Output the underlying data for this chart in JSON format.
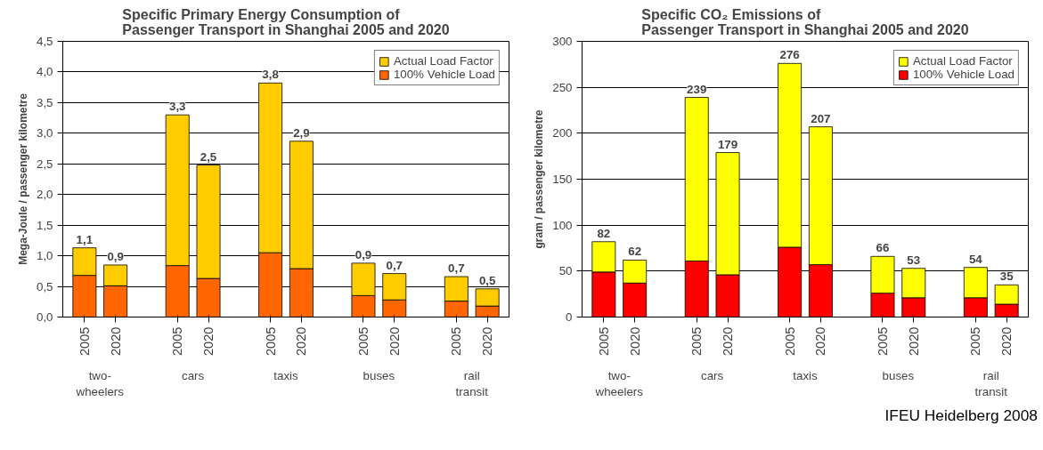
{
  "chart_data": [
    {
      "type": "bar",
      "stacked": true,
      "title": "Specific Primary Energy Consumption of\nPassenger Transport in Shanghai 2005 and 2020",
      "ylabel": "Mega-Joule / passenger kilometre",
      "categories": [
        "2005",
        "2020",
        null,
        "2005",
        "2020",
        null,
        "2005",
        "2020",
        null,
        "2005",
        "2020",
        null,
        "2005",
        "2020"
      ],
      "series": [
        {
          "name": "100% Vehicle Load",
          "color": "#ff6600",
          "values": [
            0.68,
            0.51,
            null,
            0.84,
            0.63,
            null,
            1.05,
            0.79,
            null,
            0.35,
            0.28,
            null,
            0.26,
            0.18
          ]
        },
        {
          "name": "Actual Load Factor",
          "color": "#ffcc00",
          "values": [
            0.45,
            0.34,
            null,
            2.46,
            1.85,
            null,
            2.77,
            2.08,
            null,
            0.53,
            0.43,
            null,
            0.4,
            0.28
          ]
        }
      ],
      "totals": [
        "1,1",
        "0,9",
        null,
        "3,3",
        "2,5",
        null,
        "3,8",
        "2,9",
        null,
        "0,9",
        "0,7",
        null,
        "0,7",
        "0,5"
      ],
      "ylim": [
        0,
        4.5
      ],
      "yticks": [
        {
          "value": 0,
          "label": "0,0"
        },
        {
          "value": 0.5,
          "label": "0,5"
        },
        {
          "value": 1,
          "label": "1,0"
        },
        {
          "value": 1.5,
          "label": "1,5"
        },
        {
          "value": 2,
          "label": "2,0"
        },
        {
          "value": 2.5,
          "label": "2,5"
        },
        {
          "value": 3,
          "label": "3,0"
        },
        {
          "value": 3.5,
          "label": "3,5"
        },
        {
          "value": 4,
          "label": "4,0"
        },
        {
          "value": 4.5,
          "label": "4,5"
        }
      ],
      "annotations": [
        "two-wheelers",
        "cars",
        "taxis",
        "buses",
        "rail transit"
      ],
      "grid": "y",
      "legend": "top right"
    },
    {
      "type": "bar",
      "stacked": true,
      "title": "Specific CO₂ Emissions of\nPassenger Transport in Shanghai 2005 and 2020",
      "ylabel": "gram / passenger kilometre",
      "categories": [
        "2005",
        "2020",
        null,
        "2005",
        "2020",
        null,
        "2005",
        "2020",
        null,
        "2005",
        "2020",
        null,
        "2005",
        "2020"
      ],
      "series": [
        {
          "name": "100% Vehicle Load",
          "color": "#ff0000",
          "values": [
            49,
            37,
            null,
            61,
            46,
            null,
            76,
            57,
            null,
            26,
            21,
            null,
            21,
            14
          ]
        },
        {
          "name": "Actual Load Factor",
          "color": "#ffff00",
          "values": [
            33,
            25,
            null,
            178,
            133,
            null,
            200,
            150,
            null,
            40,
            32,
            null,
            33,
            21
          ]
        }
      ],
      "totals": [
        "82",
        "62",
        null,
        "239",
        "179",
        null,
        "276",
        "207",
        null,
        "66",
        "53",
        null,
        "54",
        "35"
      ],
      "ylim": [
        0,
        300
      ],
      "yticks": [
        0,
        50,
        100,
        150,
        200,
        250,
        300
      ],
      "grid": "y",
      "legend": "top right",
      "annotations": [
        "two-wheelers",
        "cars",
        "taxis",
        "buses",
        "rail transit",
        "IFEU Heidelberg 2008"
      ]
    }
  ]
}
